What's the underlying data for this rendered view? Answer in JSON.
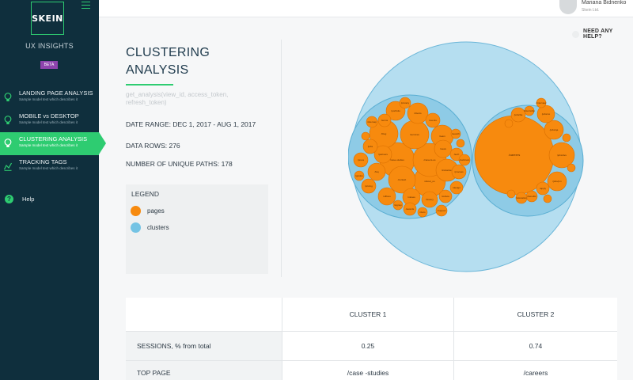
{
  "sidebar": {
    "logo": "SKEIN",
    "product": "UX INSIGHTS",
    "badge": "BETA",
    "items": [
      {
        "label": "LANDING PAGE ANALYSIS",
        "sub": "Sample model text which describes it",
        "icon": "bulb-icon"
      },
      {
        "label": "MOBILE vs DESKTOP",
        "sub": "Sample model text which describes it",
        "icon": "bulb-icon"
      },
      {
        "label": "CLUSTERING ANALYSIS",
        "sub": "Sample model text which describes it",
        "icon": "bulb-icon",
        "active": true
      },
      {
        "label": "TRACKING TAGS",
        "sub": "Sample model text which describes it",
        "icon": "chart-icon"
      }
    ],
    "help": "Help"
  },
  "topbar": {
    "user_name": "Mariana Bidnenko",
    "company": "Skein Ltd."
  },
  "need_help": "NEED ANY HELP?",
  "main": {
    "title": "CLUSTERING ANALYSIS",
    "api_call": "get_analysis(view_id, access_token, refresh_token)",
    "date_range": "DATE RANGE: DEC 1, 2017 - AUG 1, 2017",
    "data_rows": "DATA ROWS: 276",
    "unique_paths": "NUMBER OF UNIQUE PATHS: 178"
  },
  "legend": {
    "title": "LEGEND",
    "items": [
      {
        "label": "pages",
        "color": "#f78a0e"
      },
      {
        "label": "clusters",
        "color": "#74c3e4"
      }
    ]
  },
  "colors": {
    "accent": "#2ecc71",
    "sidebar": "#0f2f3d",
    "page_circle": "#f78a0e",
    "cluster_circle": "#a9d8ee"
  },
  "chart_data": {
    "type": "circle-packing",
    "clusters": [
      {
        "name": "cluster 1",
        "pages": [
          "/case-studies",
          "/about_us",
          "/careers-us",
          "/services",
          "/blog",
          "/contact",
          "/clients",
          "/industries",
          "/team",
          "/news",
          "/portfolio",
          "/partners",
          "/faq",
          "/events",
          "/jobs",
          "/press",
          "/pricing",
          "/offices",
          "/values",
          "/history",
          "/awards",
          "/culture",
          "/process",
          "/tech",
          "/design",
          "/support",
          "/docs",
          "/terms",
          "/privacy",
          "/sitemap",
          "/search",
          "/login",
          "/signup",
          "/demo",
          "/webinars",
          "/guides"
        ]
      },
      {
        "name": "cluster 2",
        "pages": [
          "/careers",
          "/jobs/dev",
          "/jobs/qa",
          "/jobs/pm",
          "/jobs/ux",
          "/jobs/ba",
          "/apply",
          "/benefits",
          "/internship",
          "/relocation",
          "/interview",
          "/hiring",
          "/talent",
          "/vacancies",
          "/offices",
          "/team"
        ]
      }
    ]
  },
  "table": {
    "headers": [
      "",
      "CLUSTER 1",
      "CLUSTER 2"
    ],
    "rows": [
      [
        "SESSIONS, % from total",
        "0.25",
        "0.74"
      ],
      [
        "TOP PAGE",
        "/case -studies",
        "/careers"
      ]
    ]
  }
}
